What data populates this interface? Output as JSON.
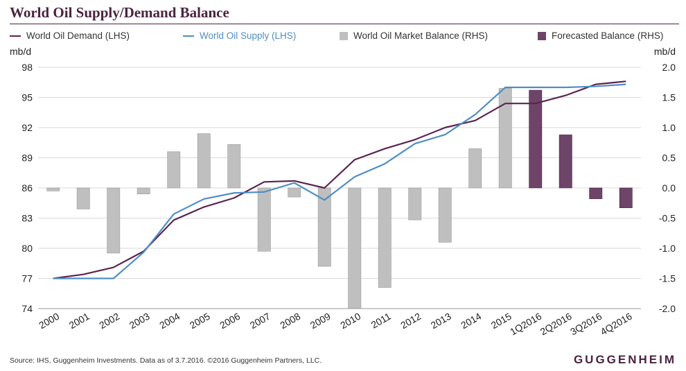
{
  "title": "World Oil Supply/Demand Balance",
  "legend": {
    "demand": "World Oil Demand (LHS)",
    "supply": "World Oil Supply (LHS)",
    "balance": "World Oil Market Balance (RHS)",
    "forecast": "Forecasted Balance (RHS)"
  },
  "colors": {
    "demand": "#5b2450",
    "supply": "#4f8ec2",
    "balance": "#bfbfbf",
    "forecast": "#6e4468",
    "axis_text": "#222222",
    "grid": "#d9d9d9"
  },
  "source": "Source: IHS, Guggenheim Investments. Data as of 3.7.2016. ©2016 Guggenheim Partners, LLC.",
  "logo": "GUGGENHEIM",
  "chart_data": {
    "type": "bar-line-combo",
    "title": "World Oil Supply/Demand Balance",
    "categories": [
      "2000",
      "2001",
      "2002",
      "2003",
      "2004",
      "2005",
      "2006",
      "2007",
      "2008",
      "2009",
      "2010",
      "2011",
      "2012",
      "2013",
      "2014",
      "2015",
      "1Q2016",
      "2Q2016",
      "3Q2016",
      "4Q2016"
    ],
    "left_axis": {
      "unit": "mb/d",
      "ylim": [
        74,
        98
      ],
      "ticks": [
        "74",
        "77",
        "80",
        "83",
        "86",
        "89",
        "92",
        "95",
        "98"
      ]
    },
    "right_axis": {
      "unit": "mb/d",
      "ylim": [
        -2.0,
        2.0
      ],
      "ticks": [
        "-2.0",
        "-1.5",
        "-1.0",
        "-0.5",
        "0.0",
        "0.5",
        "1.0",
        "1.5",
        "2.0"
      ]
    },
    "grid": true,
    "legend_position": "top",
    "series": [
      {
        "name": "World Oil Demand (LHS)",
        "type": "line",
        "axis": "left",
        "values": [
          77.0,
          77.4,
          78.1,
          79.7,
          82.8,
          84.1,
          85.0,
          86.6,
          86.7,
          86.0,
          88.8,
          89.9,
          90.8,
          92.0,
          92.7,
          94.4,
          94.4,
          95.2,
          96.3,
          96.6
        ]
      },
      {
        "name": "World Oil Supply (LHS)",
        "type": "line",
        "axis": "left",
        "values": [
          77.0,
          77.0,
          77.0,
          79.6,
          83.4,
          84.9,
          85.5,
          85.6,
          86.5,
          84.8,
          87.1,
          88.4,
          90.4,
          91.3,
          93.3,
          96.0,
          96.0,
          96.0,
          96.1,
          96.3
        ]
      },
      {
        "name": "World Oil Market Balance (RHS)",
        "type": "bar",
        "axis": "right",
        "values": [
          -0.05,
          -0.35,
          -1.08,
          -0.1,
          0.6,
          0.9,
          0.72,
          -1.05,
          -0.15,
          -1.3,
          -2.0,
          -1.65,
          -0.53,
          -0.9,
          0.65,
          1.65,
          null,
          null,
          null,
          null
        ]
      },
      {
        "name": "Forecasted Balance (RHS)",
        "type": "bar",
        "axis": "right",
        "values": [
          null,
          null,
          null,
          null,
          null,
          null,
          null,
          null,
          null,
          null,
          null,
          null,
          null,
          null,
          null,
          null,
          1.62,
          0.88,
          -0.18,
          -0.33
        ]
      }
    ]
  }
}
